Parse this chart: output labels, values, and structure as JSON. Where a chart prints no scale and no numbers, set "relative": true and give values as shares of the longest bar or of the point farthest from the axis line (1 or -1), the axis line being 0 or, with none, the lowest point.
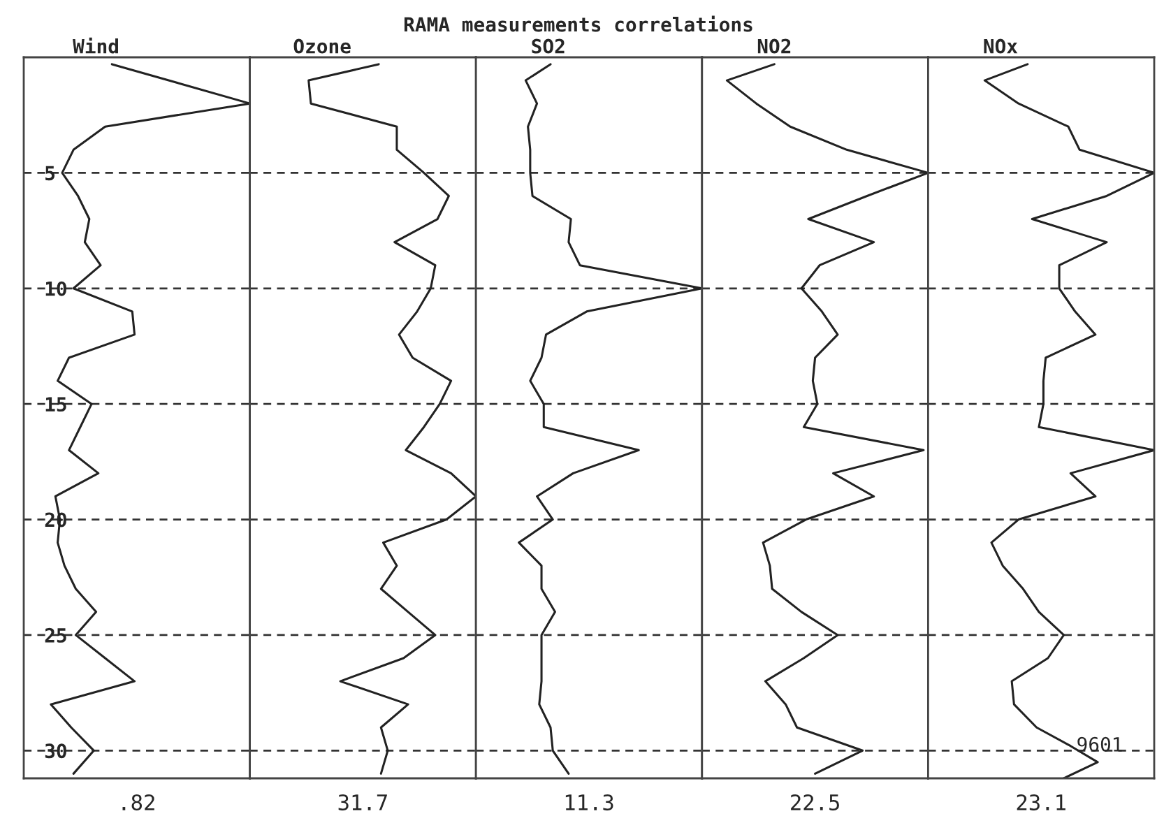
{
  "chart_data": [
    {
      "type": "line",
      "orientation": "horizontal",
      "relative": true,
      "title": "Wind",
      "xlabel": ".82",
      "annotations": [
        "RAMA measurements correlations"
      ],
      "color": "#222222",
      "grid": "y",
      "tick_labels": "y",
      "ylim": [
        31.2,
        0
      ],
      "yticks": [
        5,
        10,
        15,
        20,
        25,
        30
      ],
      "x": [
        0.3,
        2,
        3,
        4,
        5,
        6,
        7,
        8,
        9,
        10,
        11,
        12,
        13,
        14,
        15,
        16,
        17,
        18,
        19,
        20,
        21,
        22,
        23,
        24,
        25,
        26,
        27,
        28,
        29,
        30,
        31
      ],
      "values": [
        0.39,
        1,
        0.36,
        0.22,
        0.17,
        0.24,
        0.29,
        0.27,
        0.34,
        0.22,
        0.48,
        0.49,
        0.2,
        0.15,
        0.3,
        0.25,
        0.2,
        0.33,
        0.14,
        0.16,
        0.15,
        0.18,
        0.23,
        0.32,
        0.23,
        0.36,
        0.49,
        0.12,
        0.21,
        0.31,
        0.22
      ]
    },
    {
      "type": "line",
      "orientation": "horizontal",
      "relative": true,
      "title": "Ozone",
      "xlabel": "31.7",
      "color": "#222222",
      "grid": "y",
      "tick_labels": false,
      "ylim": [
        31.2,
        0
      ],
      "yticks": [
        5,
        10,
        15,
        20,
        25,
        30
      ],
      "x": [
        0.3,
        1,
        2,
        3,
        4,
        5,
        6,
        7,
        8,
        9,
        10,
        11,
        12,
        13,
        14,
        15,
        16,
        17,
        18,
        19,
        20,
        21,
        22,
        23,
        24,
        25,
        26,
        27,
        28,
        29,
        30,
        31
      ],
      "values": [
        0.57,
        0.26,
        0.27,
        0.65,
        0.65,
        0.77,
        0.88,
        0.83,
        0.64,
        0.82,
        0.8,
        0.74,
        0.66,
        0.72,
        0.89,
        0.84,
        0.77,
        0.69,
        0.89,
        1,
        0.87,
        0.59,
        0.65,
        0.58,
        0.7,
        0.82,
        0.68,
        0.4,
        0.7,
        0.58,
        0.61,
        0.58
      ]
    },
    {
      "type": "line",
      "orientation": "horizontal",
      "relative": true,
      "title": "SO2",
      "xlabel": "11.3",
      "color": "#222222",
      "grid": "y",
      "tick_labels": false,
      "ylim": [
        31.2,
        0
      ],
      "yticks": [
        5,
        10,
        15,
        20,
        25,
        30
      ],
      "x": [
        0.3,
        1,
        2,
        3,
        4,
        5,
        6,
        7,
        8,
        9,
        10,
        11,
        12,
        13,
        14,
        15,
        16,
        17,
        18,
        19,
        20,
        21,
        22,
        23,
        24,
        25,
        26,
        27,
        28,
        29,
        30,
        31
      ],
      "values": [
        0.33,
        0.22,
        0.27,
        0.23,
        0.24,
        0.24,
        0.25,
        0.42,
        0.41,
        0.46,
        1,
        0.49,
        0.31,
        0.29,
        0.24,
        0.3,
        0.3,
        0.72,
        0.43,
        0.27,
        0.34,
        0.19,
        0.29,
        0.29,
        0.35,
        0.29,
        0.29,
        0.29,
        0.28,
        0.33,
        0.34,
        0.41
      ]
    },
    {
      "type": "line",
      "orientation": "horizontal",
      "relative": true,
      "title": "NO2",
      "xlabel": "22.5",
      "color": "#222222",
      "grid": "y",
      "tick_labels": false,
      "ylim": [
        31.2,
        0
      ],
      "yticks": [
        5,
        10,
        15,
        20,
        25,
        30
      ],
      "x": [
        0.3,
        1,
        2,
        3,
        4,
        5,
        6,
        7,
        8,
        9,
        10,
        11,
        12,
        13,
        14,
        15,
        16,
        17,
        18,
        19,
        20,
        21,
        22,
        23,
        24,
        25,
        26,
        27,
        28,
        29,
        30,
        31
      ],
      "values": [
        0.32,
        0.11,
        0.24,
        0.39,
        0.64,
        1,
        0.73,
        0.47,
        0.76,
        0.52,
        0.44,
        0.53,
        0.6,
        0.5,
        0.49,
        0.51,
        0.45,
        0.98,
        0.58,
        0.76,
        0.46,
        0.27,
        0.3,
        0.31,
        0.44,
        0.6,
        0.45,
        0.28,
        0.37,
        0.42,
        0.71,
        0.5
      ]
    },
    {
      "type": "line",
      "orientation": "horizontal",
      "relative": true,
      "title": "NOx",
      "xlabel": "23.1",
      "annotations": [
        {
          "text": "9601",
          "x": 0.63,
          "y": 29.8
        }
      ],
      "color": "#222222",
      "grid": "y",
      "tick_labels": false,
      "ylim": [
        31.2,
        0
      ],
      "yticks": [
        5,
        10,
        15,
        20,
        25,
        30
      ],
      "x": [
        0.3,
        1,
        2,
        3,
        4,
        5,
        6,
        7,
        8,
        9,
        10,
        11,
        12,
        13,
        14,
        15,
        16,
        17,
        18,
        19,
        20,
        21,
        22,
        23,
        24,
        25,
        26,
        27,
        28,
        29,
        29.8,
        30.5,
        31.2
      ],
      "values": [
        0.44,
        0.25,
        0.4,
        0.62,
        0.67,
        1,
        0.79,
        0.46,
        0.79,
        0.58,
        0.58,
        0.65,
        0.74,
        0.52,
        0.51,
        0.51,
        0.49,
        1,
        0.63,
        0.74,
        0.4,
        0.28,
        0.33,
        0.42,
        0.49,
        0.6,
        0.53,
        0.37,
        0.38,
        0.48,
        0.63,
        0.75,
        0.6
      ]
    }
  ]
}
